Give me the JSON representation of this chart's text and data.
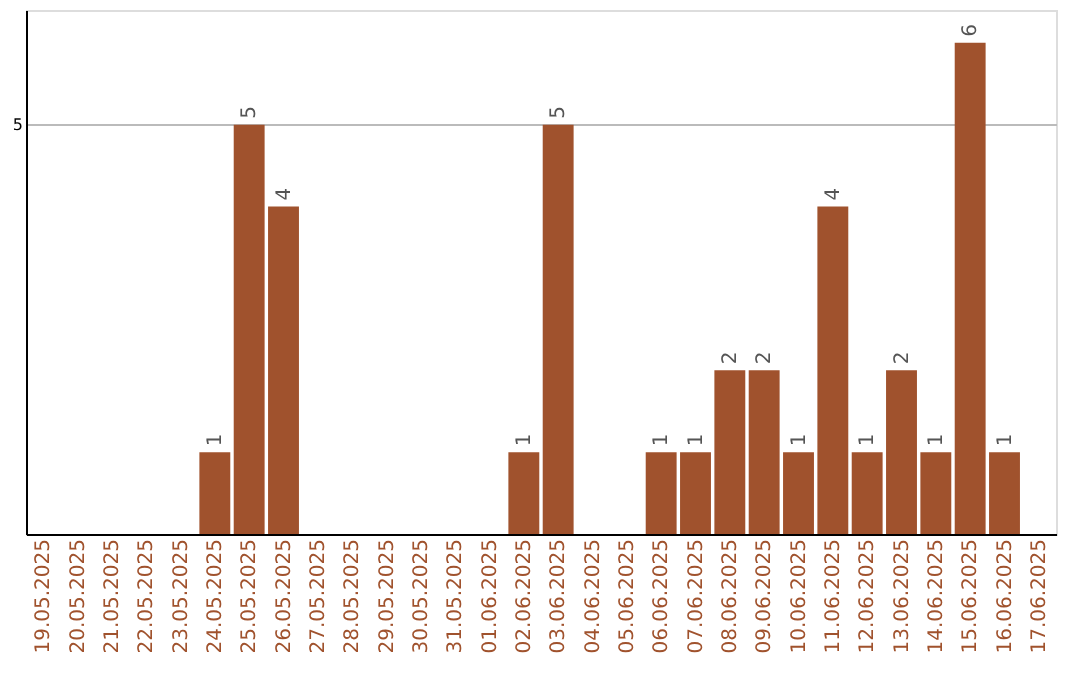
{
  "chart_data": {
    "type": "bar",
    "categories": [
      "19.05.2025",
      "20.05.2025",
      "21.05.2025",
      "22.05.2025",
      "23.05.2025",
      "24.05.2025",
      "25.05.2025",
      "26.05.2025",
      "27.05.2025",
      "28.05.2025",
      "29.05.2025",
      "30.05.2025",
      "31.05.2025",
      "01.06.2025",
      "02.06.2025",
      "03.06.2025",
      "04.06.2025",
      "05.06.2025",
      "06.06.2025",
      "07.06.2025",
      "08.06.2025",
      "09.06.2025",
      "10.06.2025",
      "11.06.2025",
      "12.06.2025",
      "13.06.2025",
      "14.06.2025",
      "15.06.2025",
      "16.06.2025",
      "17.06.2025"
    ],
    "values": [
      0,
      0,
      0,
      0,
      0,
      1,
      5,
      4,
      0,
      0,
      0,
      0,
      0,
      0,
      1,
      5,
      0,
      0,
      1,
      1,
      2,
      2,
      1,
      4,
      1,
      2,
      1,
      6,
      1,
      0
    ],
    "value_labels": [
      null,
      null,
      null,
      null,
      null,
      "1",
      "5",
      "4",
      null,
      null,
      null,
      null,
      null,
      null,
      "1",
      "5",
      null,
      null,
      "1",
      "1",
      "2",
      "2",
      "1",
      "4",
      "1",
      "2",
      "1",
      "6",
      "1",
      null
    ],
    "color": "#a0522d",
    "ylim": [
      0,
      6.4
    ],
    "yticks": [
      5
    ],
    "grid": "y"
  }
}
